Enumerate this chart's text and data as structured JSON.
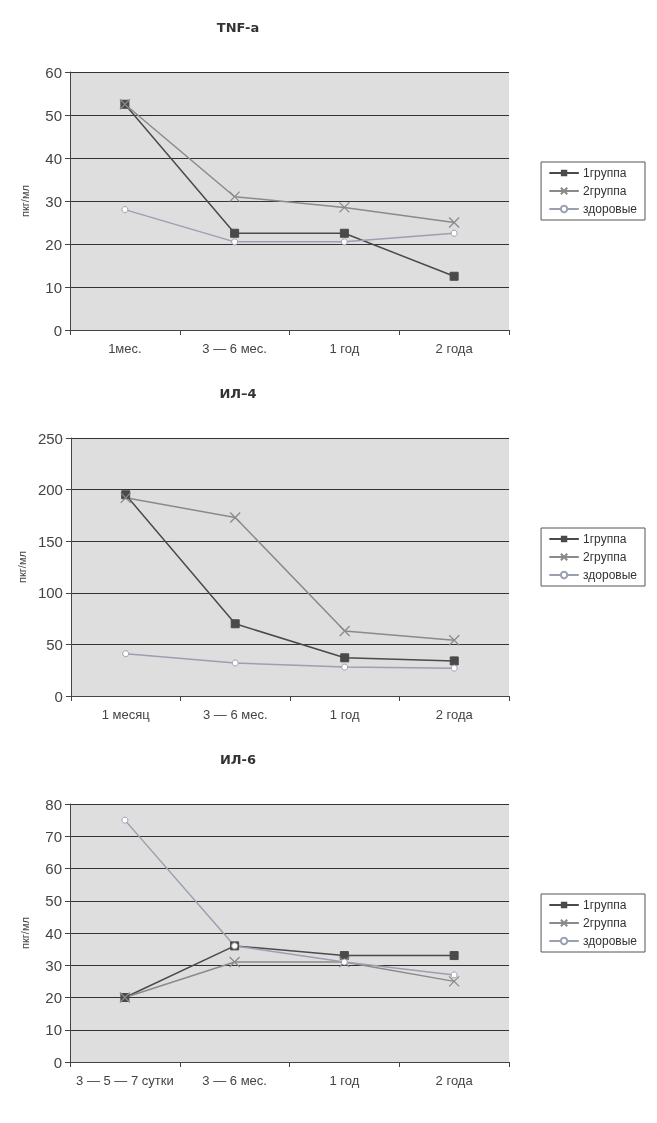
{
  "chart_data": [
    {
      "type": "line",
      "title": "TNF-a",
      "ylabel": "пкг/мл",
      "categories": [
        "1мес.",
        "3 — 6 мес.",
        "1 год",
        "2 года"
      ],
      "ylim": [
        0,
        60
      ],
      "yticks": [
        0,
        10,
        20,
        30,
        40,
        50,
        60
      ],
      "grid": "y",
      "legend": "right",
      "series": [
        {
          "name": "1группа",
          "color": "#4a4a4a",
          "marker": "square",
          "values": [
            52.5,
            22.5,
            22.5,
            12.5
          ]
        },
        {
          "name": "2группа",
          "color": "#8a8a8a",
          "marker": "cross",
          "values": [
            52.5,
            31,
            28.5,
            25
          ]
        },
        {
          "name": "здоровые",
          "color": "#9aa0b0",
          "marker": "circle",
          "values": [
            28,
            20.5,
            20.5,
            22.5
          ]
        }
      ]
    },
    {
      "type": "line",
      "title": "ИЛ–4",
      "ylabel": "пкг/мл",
      "categories": [
        "1 месяц",
        "3 — 6 мес.",
        "1 год",
        "2 года"
      ],
      "ylim": [
        0,
        250
      ],
      "yticks": [
        0,
        50,
        100,
        150,
        200,
        250
      ],
      "grid": "y",
      "legend": "right",
      "series": [
        {
          "name": "1группа",
          "color": "#4a4a4a",
          "marker": "square",
          "values": [
            195,
            70,
            37,
            34
          ]
        },
        {
          "name": "2группа",
          "color": "#8a8a8a",
          "marker": "cross",
          "values": [
            192,
            173,
            63,
            54
          ]
        },
        {
          "name": "здоровые",
          "color": "#9aa0b0",
          "marker": "circle",
          "values": [
            41,
            32,
            28,
            27
          ]
        }
      ]
    },
    {
      "type": "line",
      "title": "ИЛ-6",
      "ylabel": "пкг/мл",
      "categories": [
        "3 — 5 — 7 сутки",
        "3 — 6 мес.",
        "1 год",
        "2 года"
      ],
      "ylim": [
        0,
        80
      ],
      "yticks": [
        0,
        10,
        20,
        30,
        40,
        50,
        60,
        70,
        80
      ],
      "grid": "y",
      "legend": "right",
      "series": [
        {
          "name": "1группа",
          "color": "#4a4a4a",
          "marker": "square",
          "values": [
            20,
            36,
            33,
            33
          ]
        },
        {
          "name": "2группа",
          "color": "#8a8a8a",
          "marker": "cross",
          "values": [
            20,
            31,
            31,
            25
          ]
        },
        {
          "name": "здоровые",
          "color": "#9aa0b0",
          "marker": "circle",
          "values": [
            75,
            36,
            31,
            27
          ]
        }
      ]
    }
  ]
}
